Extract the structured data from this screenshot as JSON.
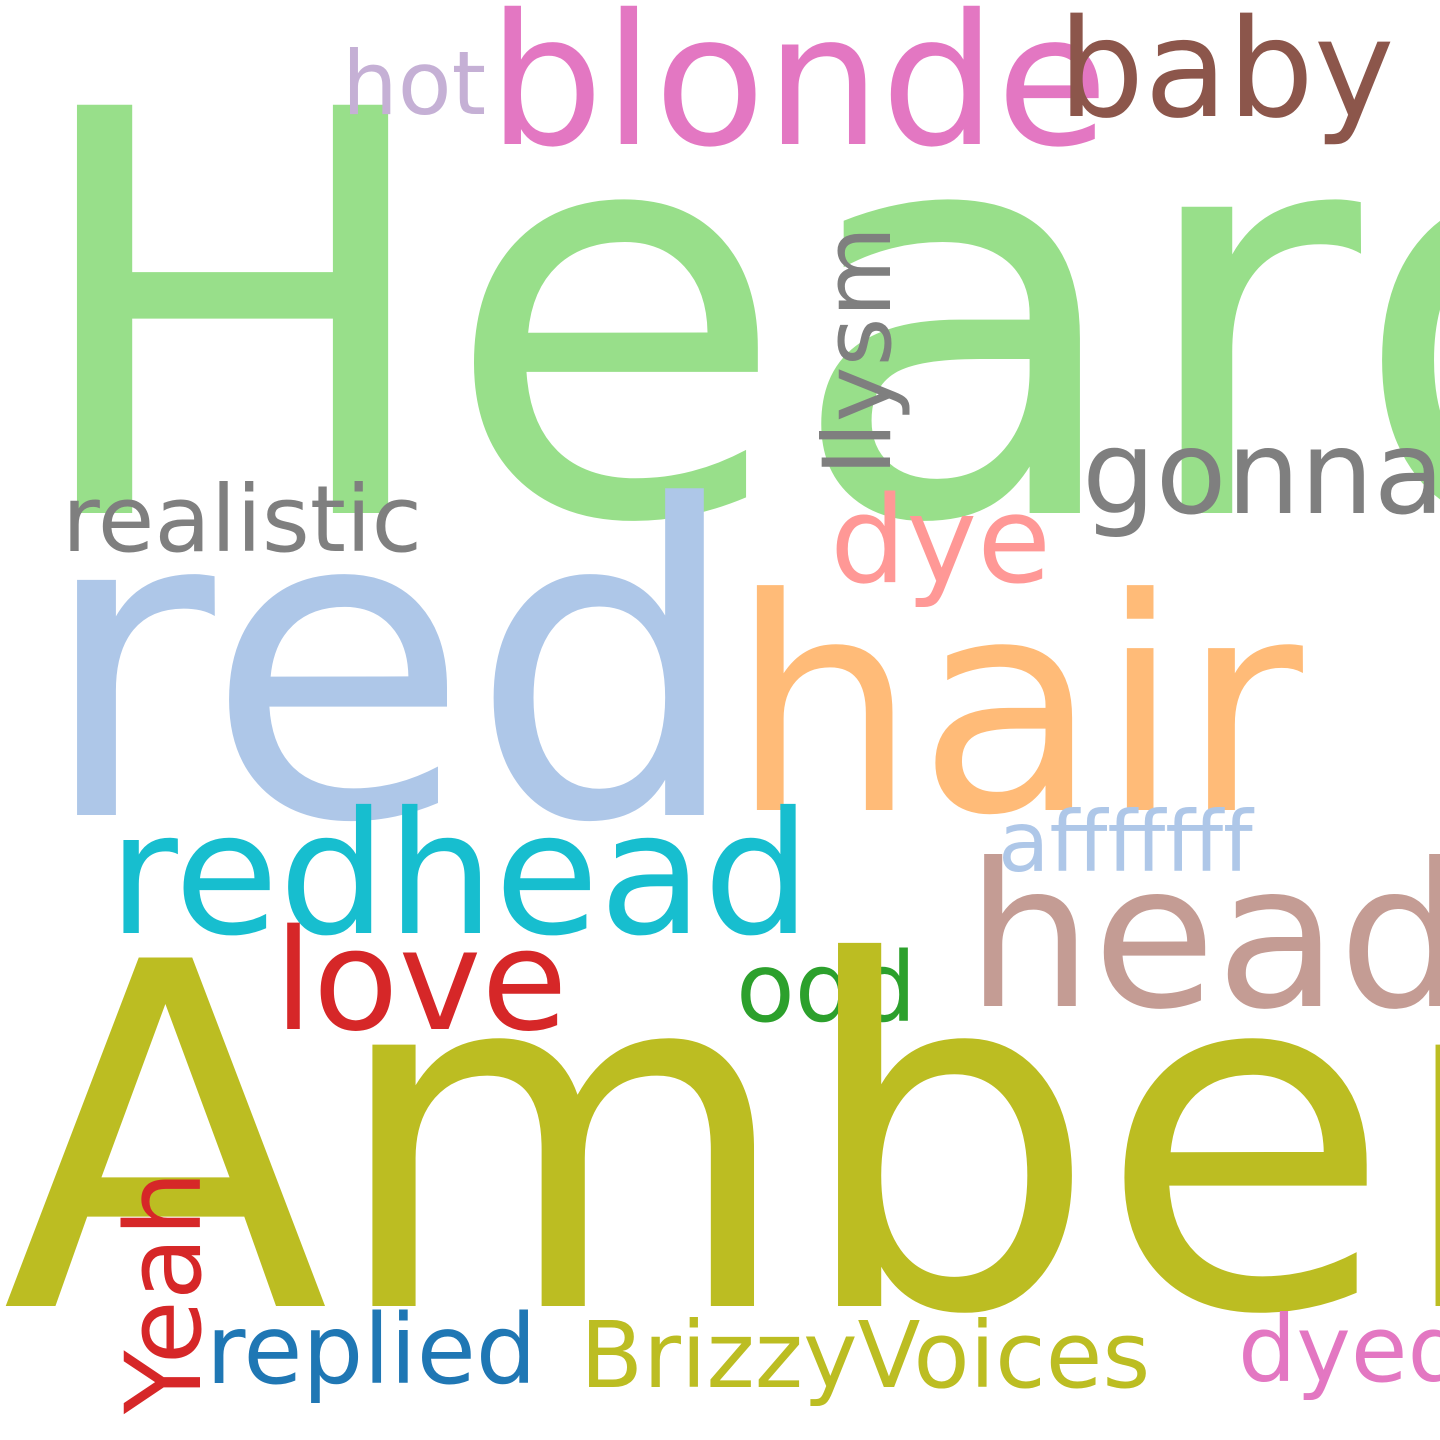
{
  "words": [
    {
      "key": "heard",
      "text": "Heard",
      "color": "#98df8a"
    },
    {
      "key": "blonde",
      "text": "blonde",
      "color": "#e377c2"
    },
    {
      "key": "baby",
      "text": "baby",
      "color": "#8c564b"
    },
    {
      "key": "hot",
      "text": "hot",
      "color": "#c5b0d5"
    },
    {
      "key": "ilysm",
      "text": "Ilysm",
      "color": "#7f7f7f"
    },
    {
      "key": "gonna",
      "text": "gonna",
      "color": "#7f7f7f"
    },
    {
      "key": "realistic",
      "text": "realistic",
      "color": "#7f7f7f"
    },
    {
      "key": "dye",
      "text": "dye",
      "color": "#ff9896"
    },
    {
      "key": "red",
      "text": "red",
      "color": "#aec7e8"
    },
    {
      "key": "hair",
      "text": "hair",
      "color": "#ffbb78"
    },
    {
      "key": "affffff",
      "text": "afffffff",
      "color": "#aec7e8"
    },
    {
      "key": "redhead",
      "text": "redhead",
      "color": "#17becf"
    },
    {
      "key": "head",
      "text": "head",
      "color": "#c49c94"
    },
    {
      "key": "love",
      "text": "love",
      "color": "#d62728"
    },
    {
      "key": "odd",
      "text": "odd",
      "color": "#2ca02c"
    },
    {
      "key": "amber",
      "text": "Amber",
      "color": "#bcbd22"
    },
    {
      "key": "yeah",
      "text": "Yeah",
      "color": "#d62728"
    },
    {
      "key": "replied",
      "text": "replied",
      "color": "#1f77b4"
    },
    {
      "key": "brizzyvoices",
      "text": "BrizzyVoices",
      "color": "#bcbd22"
    },
    {
      "key": "dyed",
      "text": "dyed",
      "color": "#e377c2"
    }
  ]
}
